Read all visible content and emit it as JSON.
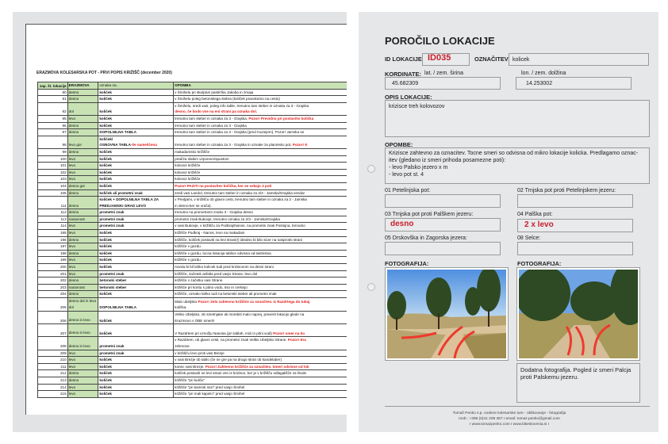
{
  "spreadsheet": {
    "title": "ERAZMOVA KOLESARSKA POT - PRVI POPIS KRIŽIŠČ (december 2020)",
    "headers": [
      "zap. št. lokacije",
      "ERAZMOVA",
      "oznaka na..",
      "OPOMBA"
    ],
    "rows": [
      {
        "n": "80",
        "d": "desno",
        "m": [
          "količek"
        ],
        "o": [
          [
            {
              "t": "v Šmihelu pri skulpturi pastirčka Jakoba in zmaja"
            }
          ]
        ]
      },
      {
        "n": "81",
        "d": "desno",
        "m": [
          "količek"
        ],
        "o": [
          [
            {
              "t": "v Šmihelu poleg betonskega stebra (količek pravokotno na cesto)"
            }
          ]
        ]
      },
      {
        "n": "82",
        "d": "dol",
        "m": [
          "",
          "količek"
        ],
        "o": [
          [
            {
              "t": "v Šmihelu, sredi vasi, poleg info table, trenutno tam steber in oznaka za 3 - Grajska"
            }
          ],
          [
            {
              "t": "desno, če bodo vse na eni strani pa oznaka dol.",
              "r": true
            }
          ]
        ]
      },
      {
        "n": "95",
        "d": "levo",
        "m": [
          "količek"
        ],
        "o": [
          [
            {
              "t": "trenutno tam steber in oznaka za 3 - Grajska, "
            },
            {
              "t": "Pozor! Previdno pri postavitvi količka",
              "r": true
            }
          ]
        ]
      },
      {
        "n": "96",
        "d": "desno",
        "m": [
          "količek"
        ],
        "o": [
          [
            {
              "t": "trenutno tam steber in oznaka za 3 - Grajska"
            }
          ]
        ]
      },
      {
        "n": "97",
        "d": "desno",
        "m": [
          "DOPOLNILNA TABLA"
        ],
        "o": [
          [
            {
              "t": "trenutno tam steber in oznaka za 3 - Grajska (pred muzejem). Pozor! Jamska se"
            }
          ]
        ]
      },
      {
        "n": "98",
        "d": "levo gor",
        "m": [
          "količek/",
          "OSNOVNA TABLA-"
        ],
        "mr": "še nameščena",
        "o": [
          [
            {
              "t": "trenutno tam steber in oznaka za 3 - Grajska in oznake za planinsko pot, "
            },
            {
              "t": "Pozor! K",
              "r": true
            }
          ]
        ]
      },
      {
        "n": "99",
        "d": "desno",
        "m": [
          "količek"
        ],
        "o": [
          [
            {
              "t": "makadamsko križišče"
            }
          ]
        ]
      },
      {
        "n": "100",
        "d": "levo",
        "m": [
          "količek"
        ],
        "o": [
          [
            {
              "t": "pred/za slabim vzponom/spustom"
            }
          ]
        ]
      },
      {
        "n": "101",
        "d": "levo",
        "m": [
          "količek"
        ],
        "o": [
          [
            {
              "t": "kolovoz križišče"
            }
          ]
        ]
      },
      {
        "n": "102",
        "d": "levo",
        "m": [
          "količek"
        ],
        "o": [
          [
            {
              "t": "kolovoz križišče"
            }
          ]
        ]
      },
      {
        "n": "103",
        "d": "levo",
        "m": [
          "količek"
        ],
        "o": [
          [
            {
              "t": "kolovoz križišče"
            }
          ]
        ]
      },
      {
        "n": "104",
        "d": "desno gor",
        "m": [
          "količek"
        ],
        "o": [
          [
            {
              "t": "Pozor! PAZITI na postavitev količka, ker se sekajo 3 poti",
              "r": true
            }
          ]
        ]
      },
      {
        "n": "105",
        "d": "desno",
        "m": [
          "količek ali prometni znak"
        ],
        "o": [
          [
            {
              "t": "sredi vasi Landol, trenutno tam steber in oznaka za 2/3 - Jamska/Grajska vendar"
            }
          ]
        ]
      },
      {
        "n": "111",
        "d": "desno",
        "m": [
          "količek + DOPOLNILNA TABLA ZA",
          "PREDJAMSKI GRAD LEVO"
        ],
        "o": [
          [
            {
              "t": "v Predjami, v križišču ob glavni cesti, trenutno tam steber in oznaka za 2 - Jamska"
            }
          ],
          [
            {
              "t": "in desno-ker se vrača)."
            }
          ]
        ]
      },
      {
        "n": "112",
        "d": "desno",
        "m": [
          "prometni znak"
        ],
        "o": [
          [
            {
              "t": "trenutno na prometnem znaku 3 - Grajska desno"
            }
          ]
        ]
      },
      {
        "n": "113",
        "d": "naravnost",
        "m": [
          "prometni znak"
        ],
        "o": [
          [
            {
              "t": "prometni znak Bukovje, trenutno oznaka za 2/3 - Jamska/Grajska"
            }
          ]
        ]
      },
      {
        "n": "114",
        "d": "levo",
        "m": [
          "prometni znak"
        ],
        "o": [
          [
            {
              "t": "v vasi Bukovje, v križišču za Podkraj/Nanos, na prometni znak Postojna, trenutno"
            }
          ]
        ]
      },
      {
        "n": "195",
        "d": "levo",
        "m": [
          "količek"
        ],
        "o": [
          [
            {
              "t": "križišče Podkraj - Nanos, levo na makadam"
            }
          ]
        ]
      },
      {
        "n": "196",
        "d": "desno",
        "m": [
          "količek"
        ],
        "o": [
          [
            {
              "t": "križišče, količek postaviti na levi strani(!) idealno bi bilo sicer na nasprotni strani"
            }
          ]
        ]
      },
      {
        "n": "197",
        "d": "levo",
        "m": [
          "količek"
        ],
        "o": [
          [
            {
              "t": "križišče v gozdu"
            }
          ]
        ]
      },
      {
        "n": "198",
        "d": "desno",
        "m": [
          "količek"
        ],
        "o": [
          [
            {
              "t": "križišče v gozdu, tocna lokacija tablice odvisna od lastnistva"
            }
          ]
        ]
      },
      {
        "n": "199",
        "d": "levo",
        "m": [
          "količek"
        ],
        "o": [
          [
            {
              "t": "križišče v gozdu"
            }
          ]
        ]
      },
      {
        "n": "200",
        "d": "levo",
        "m": [
          "količek"
        ],
        "o": [
          [
            {
              "t": "morda bi bil lahko kolicek tudi pred krizisceom na desni strani"
            }
          ]
        ]
      },
      {
        "n": "201",
        "d": "levo",
        "m": [
          "prometni znak"
        ],
        "o": [
          [
            {
              "t": "križišče, začetek asfalta pred vasjo Strane, levo dol"
            }
          ]
        ]
      },
      {
        "n": "202",
        "d": "desno",
        "m": [
          "betonski steber"
        ],
        "o": [
          [
            {
              "t": "križišče v začetku vasi Strane"
            }
          ]
        ]
      },
      {
        "n": "203",
        "d": "naravnost",
        "m": [
          "betonski steber"
        ],
        "o": [
          [
            {
              "t": "križišče pri koritu s pitno vodo, tiso in cerkvijo"
            }
          ]
        ]
      },
      {
        "n": "204",
        "d": "desno",
        "m": [
          "količek"
        ],
        "o": [
          [
            {
              "t": "križišče, oznako lahko tudi na betonski steber ali prometni znak"
            }
          ]
        ]
      },
      {
        "n": "205",
        "d": "desno dol in levo dol",
        "m": [
          "",
          "DOPOLNILNA TABLA"
        ],
        "o": [
          [
            {
              "t": "Malo ubeljsko "
            },
            {
              "t": "Pozor! Zelo zahtevno križišče za označitev. Iz Razdrtega do tukaj",
              "r": true
            }
          ],
          [
            {
              "t": "količka."
            }
          ]
        ]
      },
      {
        "n": "206",
        "d": "desno in levo",
        "m": [
          "",
          "količek"
        ],
        "o": [
          [
            {
              "t": "Veliko Ubeljsko, ob smetnjake ali morebiti malo naprej, preverit lokacijo glede na"
            }
          ],
          [
            {
              "t": "Erazmovo v OBE smeri!!"
            }
          ]
        ]
      },
      {
        "n": "207",
        "d": "desno in levo",
        "m": [
          "",
          "količek"
        ],
        "o": [
          [
            {
              "t": ""
            }
          ],
          [
            {
              "t": "V Razdrtem pri vznožju Nanosa (pri tablah, mizi in pitni vodi) "
            },
            {
              "t": "Pozor! smer na ko",
              "r": true
            }
          ]
        ]
      },
      {
        "n": "208",
        "d": "desno in levo",
        "m": [
          "",
          "prometni znak"
        ],
        "o": [
          [
            {
              "t": "v Razdrtem, ob glavni cesti, na prometni znak Veliko Ubeljsko Strane. "
            },
            {
              "t": "Pozor! Era",
              "r": true
            }
          ],
          [
            {
              "t": "Jelenove."
            }
          ]
        ]
      },
      {
        "n": "209",
        "d": "levo",
        "m": [
          "prometni znak"
        ],
        "o": [
          [
            {
              "t": "v križišču levo proti vasi Brezje"
            }
          ]
        ]
      },
      {
        "n": "210",
        "d": "levo",
        "m": [
          "količek"
        ],
        "o": [
          [
            {
              "t": "v vasi Brezje ob tablo (če ne gre pa na drugo stran ob kandelaber)"
            }
          ]
        ]
      },
      {
        "n": "211",
        "d": "levo",
        "m": [
          "količek"
        ],
        "o": [
          [
            {
              "t": "konec vasi Brezje. "
            },
            {
              "t": "Pozor! Zahtevno križišče za označitev. Smeri odvisne od lok",
              "r": true
            }
          ]
        ]
      },
      {
        "n": "212",
        "d": "desno",
        "m": [
          "količek"
        ],
        "o": [
          [
            {
              "t": "količek postaviti ne levi strani ven iz krizisce, ker je v križišču odlagališče za hlode"
            }
          ]
        ]
      },
      {
        "n": "213",
        "d": "desno",
        "m": [
          "količek"
        ],
        "o": [
          [
            {
              "t": "križišče \"pri kuliču\""
            }
          ]
        ]
      },
      {
        "n": "214",
        "d": "levo",
        "m": [
          "količek"
        ],
        "o": [
          [
            {
              "t": "križišče \"pri kamniti mizi\" pred vasjo Šmihel"
            }
          ]
        ]
      },
      {
        "n": "215",
        "d": "levo",
        "m": [
          "količek"
        ],
        "o": [
          [
            {
              "t": "križišče \"pri mali kapelci\" pred vasjo Šmihel"
            }
          ]
        ]
      }
    ]
  },
  "report": {
    "title": "POROČILO LOKACIJE",
    "id_label": "ID LOKACIJE:",
    "id_value": "ID035",
    "mark_label": "OZNAČITEV:",
    "mark_value": "kolicek",
    "coords_label": "KORDINATE:",
    "lat_label": "lat. / zem. širina",
    "lon_label": "lon. / zem. dolžina",
    "lat_value": "45.682309",
    "lon_value": "14.253002",
    "desc_label": "OPIS LOKACIJE:",
    "desc_value": "krizisce treh kolovozov",
    "notes_label": "OPOMBE:",
    "notes_value": "Krizisce zahtevno za oznacitev. Tocne smeri so odvisna od mikro lokacije kolicka. Predlagamo oznac-itev (gledano iz smeri prihoda posamezne poti):\n- levo Palsko jezero x m\n- levo pot st. 4",
    "routes": [
      {
        "label": "01 Petelinjska pot:",
        "value": ""
      },
      {
        "label": "02 Trnjska pot proti Petelinjskem jezeru:",
        "value": ""
      },
      {
        "label": "03 Trnjska pot proti Palškem jezeru:",
        "value": "desno"
      },
      {
        "label": "04 Palška pot:",
        "value": "2 x levo"
      },
      {
        "label": "05 Drskovška in Zagorska jezera:",
        "value": ""
      },
      {
        "label": "08 Selce:",
        "value": ""
      }
    ],
    "photo_label_1": "FOTOGRAFIJA:",
    "photo_label_2": "FOTOGRAFIJA:",
    "photo_caption": "Dodatna fotografija. Pogled iz smeri Palcja proti Palskemu jezeru.",
    "footer": [
      "Tomaž Penko s.p. vodene kolesarske ture - oblikovanje - fotografija",
      "mob.: +386 (0)41 208 387 I email: tomaz.penko@gmail.com",
      "I www.tomazpenko.com I www.bikeslovenia.si I"
    ],
    "accent_color": "#c8202e",
    "arrow_color": "#ee3a2e"
  }
}
